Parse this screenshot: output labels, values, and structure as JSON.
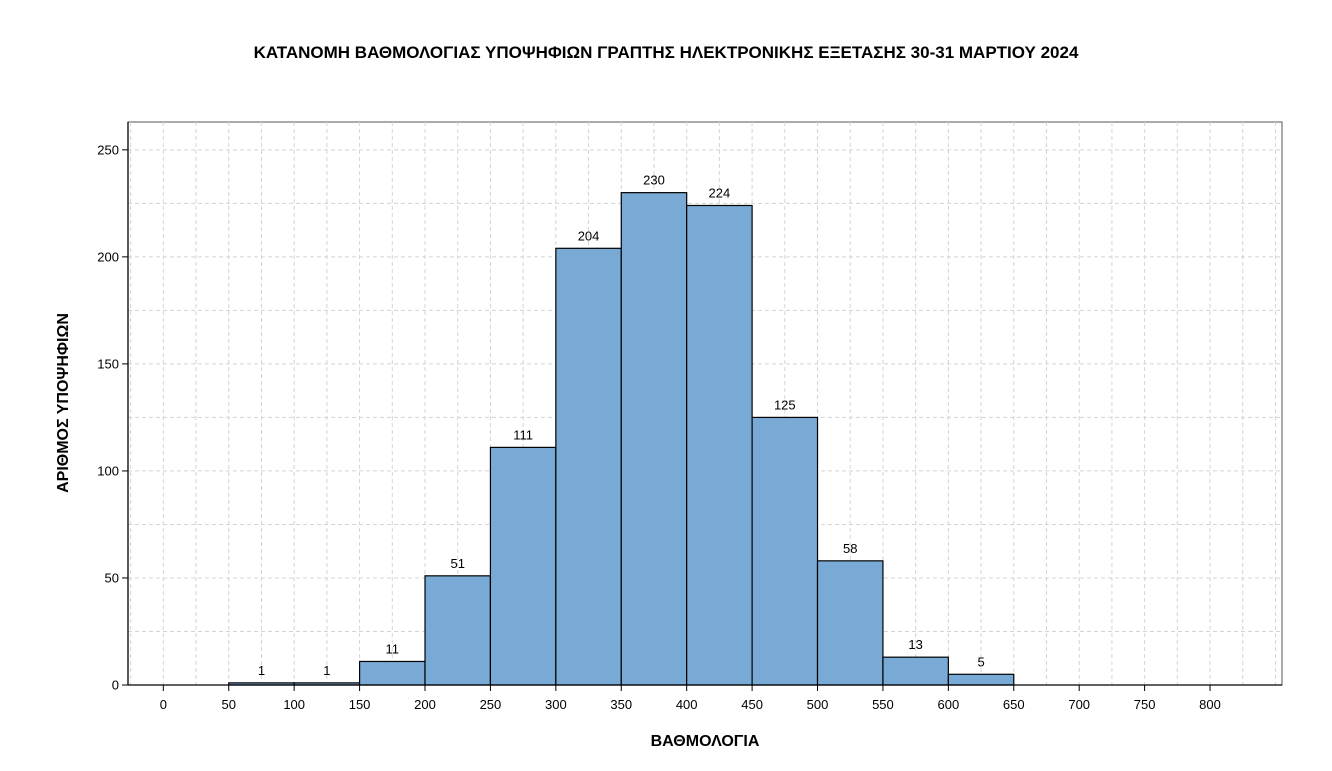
{
  "chart_data": {
    "type": "bar",
    "title": "ΚΑΤΑΝΟΜΗ ΒΑΘΜΟΛΟΓΙΑΣ ΥΠΟΨΗΦΙΩΝ ΓΡΑΠΤΗΣ ΗΛΕΚΤΡΟΝΙΚΗΣ ΕΞΕΤΑΣΗΣ 30-31 ΜΑΡΤΙΟΥ 2024",
    "xlabel": "ΒΑΘΜΟΛΟΓΙΑ",
    "ylabel": "ΑΡΙΘΜΟΣ ΥΠΟΨΗΦΙΩΝ",
    "bin_width": 50,
    "bins": [
      {
        "start": 50,
        "end": 100,
        "value": 1,
        "label": "1"
      },
      {
        "start": 100,
        "end": 150,
        "value": 1,
        "label": "1"
      },
      {
        "start": 150,
        "end": 200,
        "value": 11,
        "label": "11"
      },
      {
        "start": 200,
        "end": 250,
        "value": 51,
        "label": "51"
      },
      {
        "start": 250,
        "end": 300,
        "value": 111,
        "label": "111"
      },
      {
        "start": 300,
        "end": 350,
        "value": 204,
        "label": "204"
      },
      {
        "start": 350,
        "end": 400,
        "value": 230,
        "label": "230"
      },
      {
        "start": 400,
        "end": 450,
        "value": 224,
        "label": "224"
      },
      {
        "start": 450,
        "end": 500,
        "value": 125,
        "label": "125"
      },
      {
        "start": 500,
        "end": 550,
        "value": 58,
        "label": "58"
      },
      {
        "start": 550,
        "end": 600,
        "value": 13,
        "label": "13"
      },
      {
        "start": 600,
        "end": 650,
        "value": 5,
        "label": "5"
      }
    ],
    "xlim": [
      -27,
      855
    ],
    "ylim": [
      0,
      263
    ],
    "x_ticks": [
      "0",
      "50",
      "100",
      "150",
      "200",
      "250",
      "300",
      "350",
      "400",
      "450",
      "500",
      "550",
      "600",
      "650",
      "700",
      "750",
      "800"
    ],
    "y_ticks": [
      "0",
      "50",
      "100",
      "150",
      "200",
      "250"
    ],
    "grid": true,
    "bar_color": "#79aad6",
    "bar_edge_color": "#000000"
  }
}
